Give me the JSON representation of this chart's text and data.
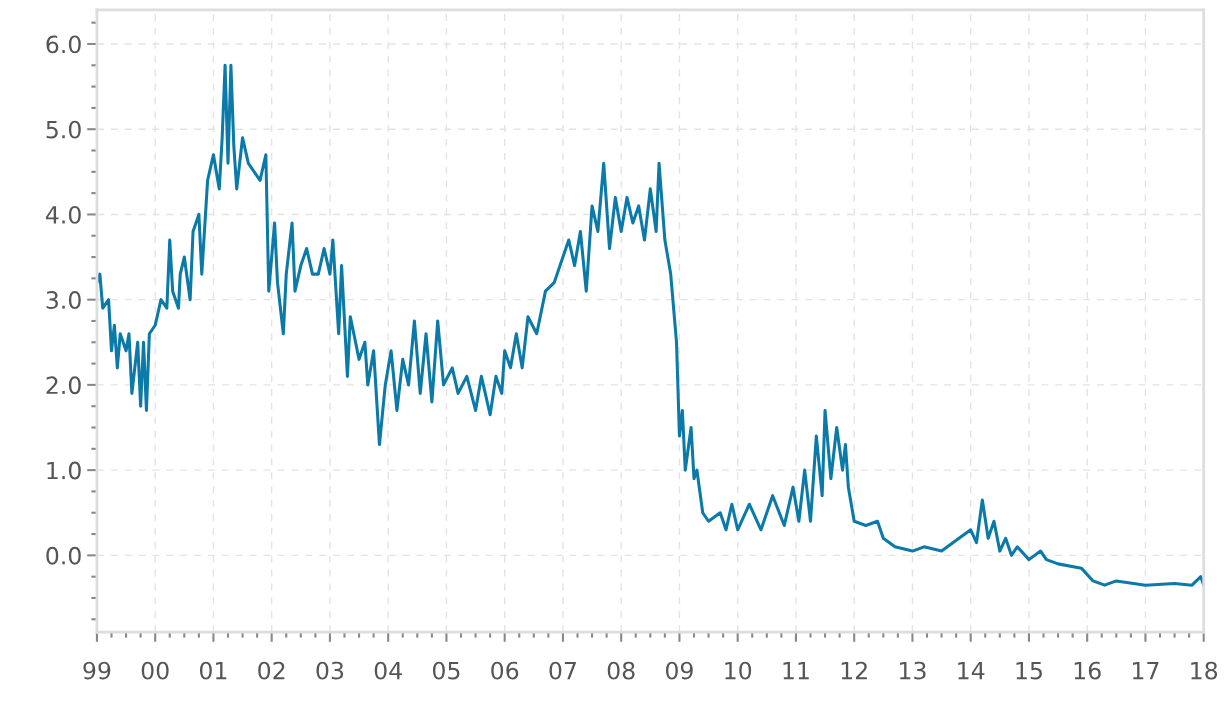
{
  "chart_data": {
    "type": "line",
    "x": [
      1999.0,
      1999.05,
      1999.1,
      1999.2,
      1999.25,
      1999.3,
      1999.35,
      1999.4,
      1999.5,
      1999.55,
      1999.6,
      1999.7,
      1999.75,
      1999.8,
      1999.85,
      1999.9,
      2000.0,
      2000.1,
      2000.2,
      2000.25,
      2000.3,
      2000.4,
      2000.43,
      2000.5,
      2000.6,
      2000.65,
      2000.75,
      2000.8,
      2000.9,
      2001.0,
      2001.1,
      2001.15,
      2001.2,
      2001.25,
      2001.3,
      2001.35,
      2001.4,
      2001.5,
      2001.6,
      2001.7,
      2001.8,
      2001.9,
      2001.95,
      2002.0,
      2002.05,
      2002.1,
      2002.2,
      2002.25,
      2002.35,
      2002.4,
      2002.5,
      2002.6,
      2002.7,
      2002.8,
      2002.9,
      2003.0,
      2003.05,
      2003.15,
      2003.2,
      2003.3,
      2003.35,
      2003.5,
      2003.6,
      2003.65,
      2003.75,
      2003.85,
      2003.95,
      2004.05,
      2004.15,
      2004.25,
      2004.35,
      2004.45,
      2004.55,
      2004.65,
      2004.75,
      2004.85,
      2004.95,
      2005.1,
      2005.2,
      2005.35,
      2005.5,
      2005.6,
      2005.75,
      2005.85,
      2005.95,
      2006.0,
      2006.1,
      2006.2,
      2006.3,
      2006.4,
      2006.55,
      2006.7,
      2006.85,
      2007.0,
      2007.1,
      2007.2,
      2007.3,
      2007.4,
      2007.5,
      2007.6,
      2007.7,
      2007.8,
      2007.9,
      2008.0,
      2008.1,
      2008.2,
      2008.3,
      2008.4,
      2008.5,
      2008.6,
      2008.65,
      2008.75,
      2008.85,
      2008.95,
      2009.0,
      2009.05,
      2009.1,
      2009.2,
      2009.25,
      2009.3,
      2009.4,
      2009.5,
      2009.7,
      2009.8,
      2009.9,
      2010.0,
      2010.2,
      2010.4,
      2010.6,
      2010.8,
      2010.95,
      2011.05,
      2011.15,
      2011.25,
      2011.35,
      2011.45,
      2011.5,
      2011.6,
      2011.7,
      2011.8,
      2011.85,
      2011.9,
      2012.0,
      2012.2,
      2012.4,
      2012.5,
      2012.7,
      2013.0,
      2013.2,
      2013.5,
      2013.7,
      2014.0,
      2014.1,
      2014.2,
      2014.3,
      2014.4,
      2014.5,
      2014.6,
      2014.7,
      2014.8,
      2015.0,
      2015.2,
      2015.3,
      2015.5,
      2015.9,
      2016.1,
      2016.3,
      2016.5,
      2017.0,
      2017.5,
      2017.8,
      2017.95,
      2018.0
    ],
    "series": [
      {
        "color": "#0b7aa8",
        "values": [
          3.2,
          3.3,
          2.9,
          3.0,
          2.4,
          2.7,
          2.2,
          2.6,
          2.4,
          2.6,
          1.9,
          2.5,
          1.75,
          2.5,
          1.7,
          2.6,
          2.7,
          3.0,
          2.9,
          3.7,
          3.1,
          2.9,
          3.3,
          3.5,
          3.0,
          3.8,
          4.0,
          3.3,
          4.4,
          4.7,
          4.3,
          4.9,
          5.75,
          4.6,
          5.75,
          4.8,
          4.3,
          4.9,
          4.6,
          4.5,
          4.4,
          4.7,
          3.1,
          3.5,
          3.9,
          3.2,
          2.6,
          3.3,
          3.9,
          3.1,
          3.4,
          3.6,
          3.3,
          3.3,
          3.6,
          3.3,
          3.7,
          2.6,
          3.4,
          2.1,
          2.8,
          2.3,
          2.5,
          2.0,
          2.4,
          1.3,
          2.0,
          2.4,
          1.7,
          2.3,
          2.0,
          2.75,
          1.9,
          2.6,
          1.8,
          2.75,
          2.0,
          2.2,
          1.9,
          2.1,
          1.7,
          2.1,
          1.65,
          2.1,
          1.9,
          2.4,
          2.2,
          2.6,
          2.2,
          2.8,
          2.6,
          3.1,
          3.2,
          3.5,
          3.7,
          3.4,
          3.8,
          3.1,
          4.1,
          3.8,
          4.6,
          3.6,
          4.2,
          3.8,
          4.2,
          3.9,
          4.1,
          3.7,
          4.3,
          3.8,
          4.6,
          3.7,
          3.3,
          2.5,
          1.4,
          1.7,
          1.0,
          1.5,
          0.9,
          1.0,
          0.5,
          0.4,
          0.5,
          0.3,
          0.6,
          0.3,
          0.6,
          0.3,
          0.7,
          0.35,
          0.8,
          0.4,
          1.0,
          0.4,
          1.4,
          0.7,
          1.7,
          0.9,
          1.5,
          1.0,
          1.3,
          0.8,
          0.4,
          0.35,
          0.4,
          0.2,
          0.1,
          0.05,
          0.1,
          0.05,
          0.15,
          0.3,
          0.15,
          0.65,
          0.2,
          0.4,
          0.05,
          0.2,
          0.0,
          0.1,
          -0.05,
          0.05,
          -0.05,
          -0.1,
          -0.15,
          -0.3,
          -0.35,
          -0.3,
          -0.35,
          -0.33,
          -0.35,
          -0.25,
          -0.35
        ]
      }
    ],
    "xlim": [
      1999,
      2018
    ],
    "xticks": [
      {
        "value": 1999,
        "label": "99"
      },
      {
        "value": 2000,
        "label": "00"
      },
      {
        "value": 2001,
        "label": "01"
      },
      {
        "value": 2002,
        "label": "02"
      },
      {
        "value": 2003,
        "label": "03"
      },
      {
        "value": 2004,
        "label": "04"
      },
      {
        "value": 2005,
        "label": "05"
      },
      {
        "value": 2006,
        "label": "06"
      },
      {
        "value": 2007,
        "label": "07"
      },
      {
        "value": 2008,
        "label": "08"
      },
      {
        "value": 2009,
        "label": "09"
      },
      {
        "value": 2010,
        "label": "10"
      },
      {
        "value": 2011,
        "label": "11"
      },
      {
        "value": 2012,
        "label": "12"
      },
      {
        "value": 2013,
        "label": "13"
      },
      {
        "value": 2014,
        "label": "14"
      },
      {
        "value": 2015,
        "label": "15"
      },
      {
        "value": 2016,
        "label": "16"
      },
      {
        "value": 2017,
        "label": "17"
      },
      {
        "value": 2018,
        "label": "18"
      }
    ],
    "ylim": [
      -0.9,
      6.4
    ],
    "yticks": [
      {
        "value": 0,
        "label": "0.0"
      },
      {
        "value": 1,
        "label": "1.0"
      },
      {
        "value": 2,
        "label": "2.0"
      },
      {
        "value": 3,
        "label": "3.0"
      },
      {
        "value": 4,
        "label": "4.0"
      },
      {
        "value": 5,
        "label": "5.0"
      },
      {
        "value": 6,
        "label": "6.0"
      }
    ],
    "grid": true,
    "line_style": "solid"
  }
}
